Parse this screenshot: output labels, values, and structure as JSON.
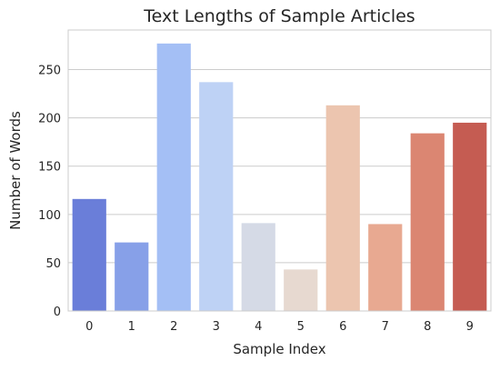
{
  "chart_data": {
    "type": "bar",
    "title": "Text Lengths of Sample Articles",
    "xlabel": "Sample Index",
    "ylabel": "Number of Words",
    "categories": [
      "0",
      "1",
      "2",
      "3",
      "4",
      "5",
      "6",
      "7",
      "8",
      "9"
    ],
    "values": [
      116,
      71,
      277,
      237,
      91,
      43,
      213,
      90,
      184,
      195
    ],
    "ylim": [
      0,
      291
    ],
    "yticks": [
      0,
      50,
      100,
      150,
      200,
      250
    ],
    "grid": "horizontal",
    "colors": [
      "#6a7ed9",
      "#87a0e8",
      "#a4bff5",
      "#bed2f5",
      "#d5dae6",
      "#e7d9d0",
      "#ecc5af",
      "#e8a991",
      "#db8672",
      "#c55c52"
    ]
  }
}
